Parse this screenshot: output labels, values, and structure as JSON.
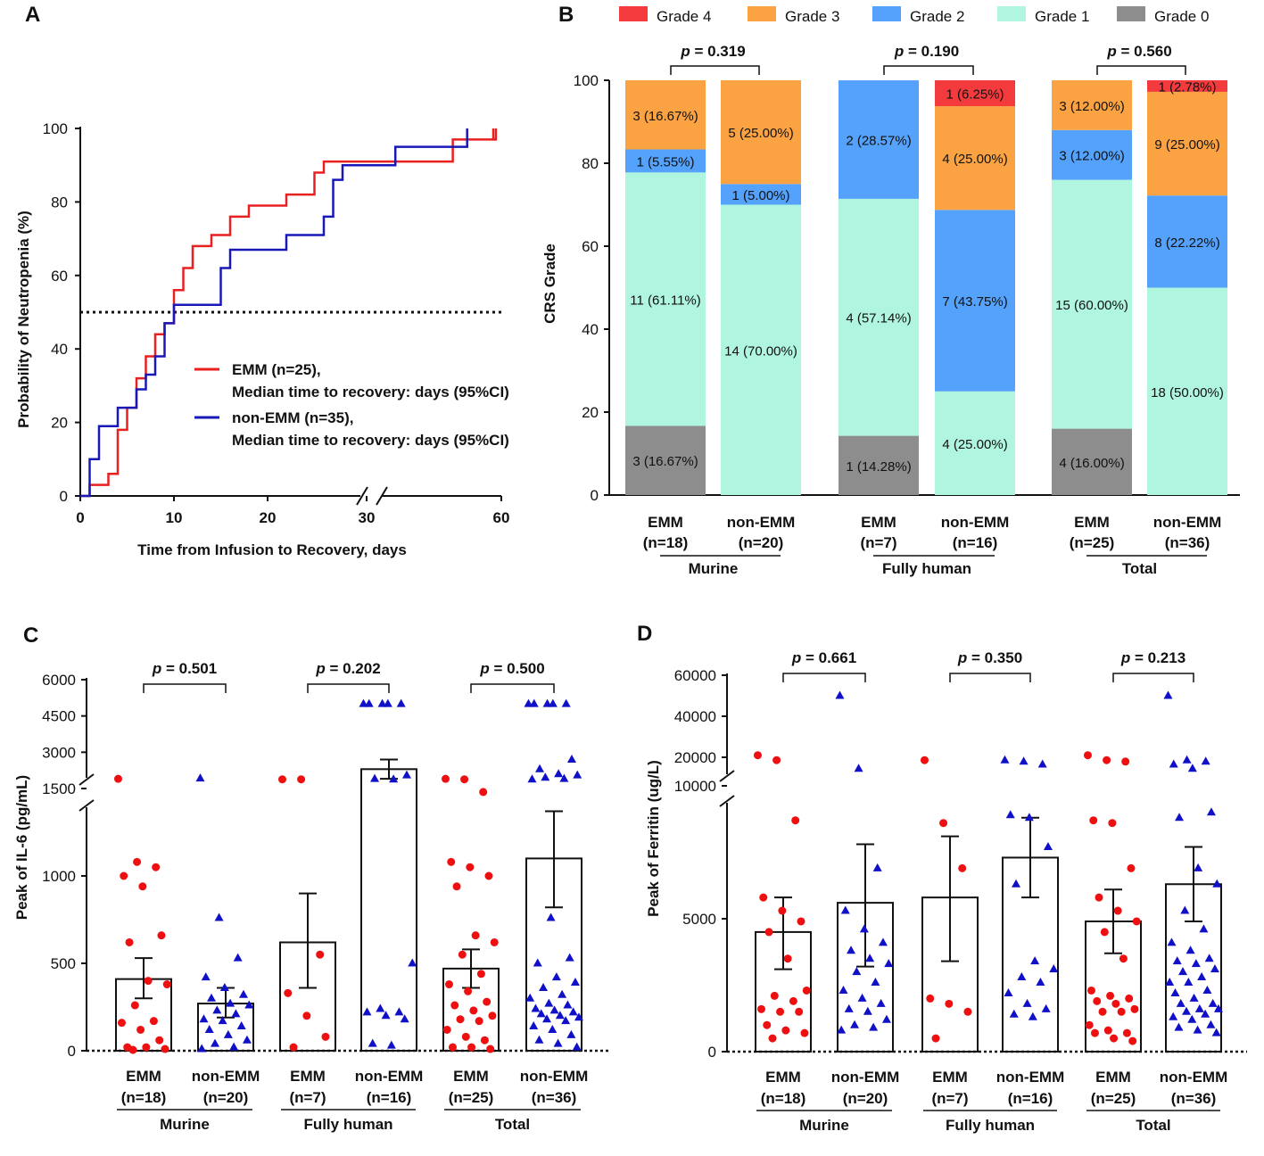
{
  "colors": {
    "red": "#e82020",
    "blue": "#1818b8",
    "grade4": "#f33b3e",
    "grade3": "#fba343",
    "grade2": "#54a2fb",
    "grade1": "#b0f5df",
    "grade0": "#8d8d8d",
    "dot_red": "#ee1010",
    "tri_blue": "#1010c8"
  },
  "panels": {
    "a": "A",
    "b": "B",
    "c": "C",
    "d": "D"
  },
  "chart_data": [
    {
      "type": "line",
      "panel": "A",
      "xlabel": "Time from Infusion to Recovery, days",
      "ylabel": "Probability of Neutropenia (%)",
      "xticks": [
        "0",
        "10",
        "20",
        "30",
        "60"
      ],
      "yticks": [
        "0",
        "20",
        "40",
        "60",
        "80",
        "100"
      ],
      "ylim": [
        0,
        100
      ],
      "reference_line_y": 50,
      "series": [
        {
          "name": "EMM",
          "legend": "EMM (n=25),",
          "legend2": "Median time to recovery: days (95%CI)",
          "x": [
            0,
            1,
            3,
            4,
            5,
            6,
            7,
            8,
            9,
            10,
            11,
            12,
            14,
            16,
            18,
            22,
            25,
            26,
            31,
            33,
            34,
            35,
            36,
            37,
            39
          ],
          "y": [
            0,
            3,
            6,
            18,
            24,
            32,
            38,
            44,
            47,
            56,
            62,
            68,
            71,
            76,
            79,
            82,
            88,
            91,
            91,
            91,
            91,
            91,
            97,
            97,
            100
          ]
        },
        {
          "name": "non-EMM",
          "legend": "non-EMM (n=35),",
          "legend2": "Median time to recovery: days (95%CI)",
          "x": [
            0,
            1,
            2,
            4,
            6,
            7,
            8,
            9,
            10,
            12,
            15,
            16,
            22,
            26,
            27,
            28,
            32,
            33,
            34,
            36,
            37
          ],
          "y": [
            0,
            10,
            19,
            24,
            29,
            33,
            38,
            47,
            52,
            52,
            62,
            67,
            71,
            76,
            86,
            90,
            95,
            95,
            95,
            95,
            100
          ]
        }
      ]
    },
    {
      "type": "bar",
      "panel": "B",
      "stacked": true,
      "ylabel": "CRS  Grade",
      "yticks": [
        "0",
        "20",
        "40",
        "60",
        "80",
        "100"
      ],
      "ylim": [
        0,
        100
      ],
      "legend": [
        "Grade  4",
        "Grade  3",
        "Grade  2",
        "Grade  1",
        "Grade  0"
      ],
      "groups": [
        "Murine",
        "Fully human",
        "Total"
      ],
      "p_values": [
        "= 0.319",
        "= 0.190",
        "= 0.560"
      ],
      "bars": [
        {
          "cat": "EMM",
          "n": "(n=18)",
          "segments": [
            {
              "g": 0,
              "v": 16.67,
              "label": "3 (16.67%)"
            },
            {
              "g": 1,
              "v": 61.11,
              "label": "11 (61.11%)"
            },
            {
              "g": 2,
              "v": 5.55,
              "label": "1 (5.55%)"
            },
            {
              "g": 3,
              "v": 16.67,
              "label": "3 (16.67%)"
            }
          ]
        },
        {
          "cat": "non-EMM",
          "n": "(n=20)",
          "segments": [
            {
              "g": 1,
              "v": 70.0,
              "label": "14 (70.00%)"
            },
            {
              "g": 2,
              "v": 5.0,
              "label": "1 (5.00%)"
            },
            {
              "g": 3,
              "v": 25.0,
              "label": "5 (25.00%)"
            }
          ]
        },
        {
          "cat": "EMM",
          "n": "(n=7)",
          "segments": [
            {
              "g": 0,
              "v": 14.28,
              "label": "1 (14.28%)"
            },
            {
              "g": 1,
              "v": 57.14,
              "label": "4 (57.14%)"
            },
            {
              "g": 2,
              "v": 28.57,
              "label": "2 (28.57%)"
            }
          ]
        },
        {
          "cat": "non-EMM",
          "n": "(n=16)",
          "segments": [
            {
              "g": 1,
              "v": 25.0,
              "label": "4 (25.00%)"
            },
            {
              "g": 2,
              "v": 43.75,
              "label": "7 (43.75%)"
            },
            {
              "g": 3,
              "v": 25.0,
              "label": "4 (25.00%)"
            },
            {
              "g": 4,
              "v": 6.25,
              "label": "1 (6.25%)"
            }
          ]
        },
        {
          "cat": "EMM",
          "n": "(n=25)",
          "segments": [
            {
              "g": 0,
              "v": 16.0,
              "label": "4 (16.00%)"
            },
            {
              "g": 1,
              "v": 60.0,
              "label": "15 (60.00%)"
            },
            {
              "g": 2,
              "v": 12.0,
              "label": "3 (12.00%)"
            },
            {
              "g": 3,
              "v": 12.0,
              "label": "3 (12.00%)"
            }
          ]
        },
        {
          "cat": "non-EMM",
          "n": "(n=36)",
          "segments": [
            {
              "g": 1,
              "v": 50.0,
              "label": "18 (50.00%)"
            },
            {
              "g": 2,
              "v": 22.22,
              "label": "8 (22.22%)"
            },
            {
              "g": 3,
              "v": 25.0,
              "label": "9 (25.00%)"
            },
            {
              "g": 4,
              "v": 2.78,
              "label": "1 (2.78%)"
            }
          ]
        }
      ]
    },
    {
      "type": "bar",
      "panel": "C",
      "ylabel": "Peak of IL-6 (pg/mL)",
      "yticks": [
        "0",
        "500",
        "1000",
        "1500",
        "3000",
        "4500",
        "6000"
      ],
      "groups": [
        "Murine",
        "Fully human",
        "Total"
      ],
      "p_values": [
        "= 0.501",
        "= 0.202",
        "= 0.500"
      ],
      "bars": [
        {
          "cat": "EMM",
          "n": "(n=18)",
          "mean": 410,
          "sem_low": 300,
          "sem_high": 530,
          "points": [
            1900,
            1080,
            1050,
            1000,
            940,
            660,
            620,
            400,
            380,
            260,
            170,
            160,
            120,
            60,
            20,
            20,
            10,
            5
          ]
        },
        {
          "cat": "non-EMM",
          "n": "(n=20)",
          "mean": 270,
          "sem_low": 190,
          "sem_high": 360,
          "points": [
            1920,
            760,
            530,
            420,
            360,
            320,
            300,
            270,
            260,
            230,
            210,
            180,
            170,
            140,
            120,
            90,
            60,
            40,
            20,
            10
          ]
        },
        {
          "cat": "EMM",
          "n": "(n=7)",
          "mean": 620,
          "sem_low": 360,
          "sem_high": 900,
          "points": [
            1880,
            1880,
            550,
            330,
            200,
            80,
            20
          ]
        },
        {
          "cat": "non-EMM",
          "n": "(n=16)",
          "mean": 2300,
          "sem_low": 1900,
          "sem_high": 2700,
          "points": [
            5000,
            5000,
            5000,
            5000,
            5000,
            2050,
            1900,
            1880,
            500,
            240,
            220,
            220,
            200,
            180,
            40,
            30
          ]
        },
        {
          "cat": "EMM",
          "n": "(n=25)",
          "mean": 470,
          "sem_low": 360,
          "sem_high": 580,
          "points": [
            1900,
            1880,
            1480,
            1080,
            1050,
            1000,
            940,
            660,
            620,
            550,
            440,
            380,
            340,
            280,
            260,
            230,
            200,
            180,
            170,
            120,
            80,
            60,
            20,
            20,
            10
          ]
        },
        {
          "cat": "non-EMM",
          "n": "(n=36)",
          "mean": 1100,
          "sem_low": 820,
          "sem_high": 1370,
          "points": [
            5000,
            5000,
            5000,
            5000,
            5000,
            2700,
            2300,
            2100,
            2050,
            1950,
            1900,
            1880,
            760,
            530,
            500,
            420,
            390,
            360,
            320,
            300,
            270,
            260,
            240,
            230,
            220,
            210,
            200,
            190,
            180,
            170,
            140,
            120,
            90,
            60,
            40,
            20
          ]
        }
      ]
    },
    {
      "type": "bar",
      "panel": "D",
      "ylabel": "Peak of Ferritin (ug/L)",
      "yticks": [
        "0",
        "5000",
        "10000",
        "20000",
        "40000",
        "60000"
      ],
      "groups": [
        "Murine",
        "Fully human",
        "Total"
      ],
      "p_values": [
        "= 0.661",
        "= 0.350",
        "= 0.213"
      ],
      "bars": [
        {
          "cat": "EMM",
          "n": "(n=18)",
          "mean": 4500,
          "sem_low": 3100,
          "sem_high": 5800,
          "points": [
            21000,
            19000,
            8700,
            5800,
            5300,
            4900,
            4500,
            3500,
            2300,
            2100,
            1900,
            1600,
            1500,
            1500,
            1000,
            800,
            700,
            500
          ]
        },
        {
          "cat": "non-EMM",
          "n": "(n=20)",
          "mean": 5600,
          "sem_low": 3200,
          "sem_high": 7800,
          "points": [
            50000,
            16000,
            6900,
            5300,
            4600,
            4100,
            3800,
            3500,
            3300,
            3000,
            2600,
            2300,
            2000,
            1800,
            1600,
            1500,
            1200,
            1000,
            900,
            800
          ]
        },
        {
          "cat": "EMM",
          "n": "(n=7)",
          "mean": 5800,
          "sem_low": 3400,
          "sem_high": 8100,
          "points": [
            19000,
            8600,
            6900,
            2000,
            1800,
            1500,
            500
          ]
        },
        {
          "cat": "non-EMM",
          "n": "(n=16)",
          "mean": 7300,
          "sem_low": 5800,
          "sem_high": 8800,
          "points": [
            19000,
            18500,
            17500,
            8900,
            8800,
            7700,
            6300,
            3400,
            3100,
            2800,
            2600,
            2200,
            1800,
            1600,
            1400,
            1300
          ]
        },
        {
          "cat": "EMM",
          "n": "(n=25)",
          "mean": 4900,
          "sem_low": 3700,
          "sem_high": 6100,
          "points": [
            21000,
            19000,
            18500,
            8700,
            8600,
            6900,
            5800,
            5300,
            4900,
            4500,
            3500,
            2300,
            2100,
            2000,
            1900,
            1800,
            1600,
            1500,
            1500,
            1000,
            800,
            700,
            700,
            500,
            400
          ]
        },
        {
          "cat": "non-EMM",
          "n": "(n=36)",
          "mean": 6300,
          "sem_low": 4900,
          "sem_high": 7700,
          "points": [
            50000,
            19000,
            18500,
            17500,
            16000,
            9000,
            8800,
            6900,
            6300,
            5300,
            4600,
            4100,
            3800,
            3500,
            3400,
            3300,
            3100,
            3000,
            2800,
            2600,
            2600,
            2300,
            2200,
            2000,
            1800,
            1800,
            1600,
            1600,
            1500,
            1400,
            1300,
            1200,
            1000,
            900,
            800,
            700
          ]
        }
      ]
    }
  ]
}
